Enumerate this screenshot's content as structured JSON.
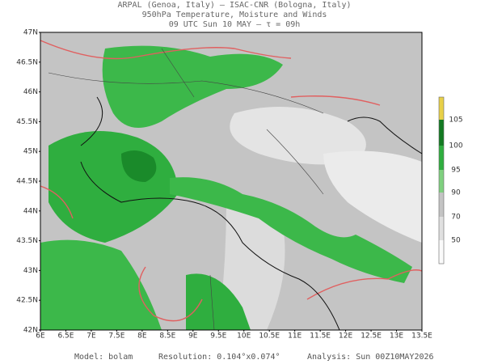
{
  "header": {
    "line1": "ARPAL (Genoa, Italy)  –  ISAC-CNR (Bologna, Italy)",
    "line2": "950hPa Temperature, Moisture and Winds",
    "line3": "09 UTC Sun 10 MAY  –  τ = 09h"
  },
  "map": {
    "lat_labels": [
      "47N",
      "46.5N",
      "46N",
      "45.5N",
      "45N",
      "44.5N",
      "44N",
      "43.5N",
      "43N",
      "42.5N",
      "42N"
    ],
    "lon_labels": [
      "6E",
      "6.5E",
      "7E",
      "7.5E",
      "8E",
      "8.5E",
      "9E",
      "9.5E",
      "10E",
      "10.5E",
      "11E",
      "11.5E",
      "12E",
      "12.5E",
      "13E",
      "13.5E"
    ]
  },
  "colorbar": {
    "labels": [
      105,
      100,
      95,
      90,
      70,
      50
    ]
  },
  "footer": {
    "model": "Model: bolam",
    "resolution": "Resolution: 0.104°x0.074°",
    "analysis": "Analysis: Sun 00Z10MAY2026"
  }
}
